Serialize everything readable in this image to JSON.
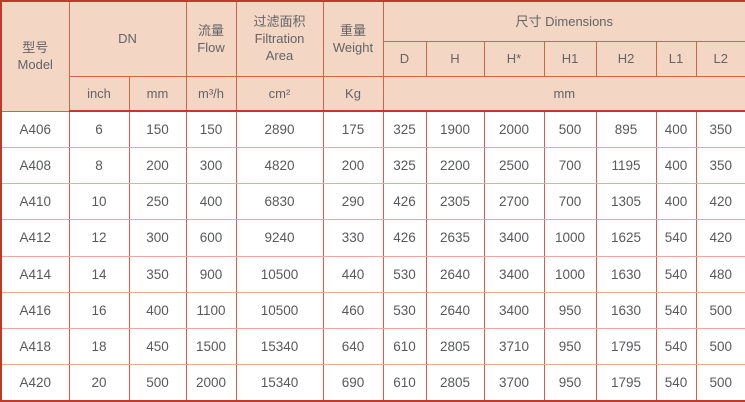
{
  "table": {
    "colors": {
      "header_bg": "#f4d6c5",
      "outer_border": "#c2392a",
      "header_grid": "#d2634b",
      "body_grid_vertical": "#dd5a49",
      "body_grid_horizontal": "#f0a89d",
      "text": "#58595b"
    },
    "header": {
      "model_zh": "型号",
      "model_en": "Model",
      "dn": "DN",
      "flow_zh": "流量",
      "flow_en": "Flow",
      "filtration_zh": "过滤面积",
      "filtration_en": "Filtration Area",
      "weight_zh": "重量",
      "weight_en": "Weight",
      "dimensions": "尺寸 Dimensions",
      "dim_cols": [
        "D",
        "H",
        "H*",
        "H1",
        "H2",
        "L1",
        "L2"
      ],
      "units": {
        "inch": "inch",
        "mm": "mm",
        "flow": "m³/h",
        "area": "cm²",
        "weight": "Kg",
        "dims": "mm"
      }
    },
    "rows": [
      {
        "model": "A406",
        "inch": "6",
        "mm": "150",
        "flow": "150",
        "area": "2890",
        "weight": "175",
        "dims": [
          "325",
          "1900",
          "2000",
          "500",
          "895",
          "400",
          "350"
        ]
      },
      {
        "model": "A408",
        "inch": "8",
        "mm": "200",
        "flow": "300",
        "area": "4820",
        "weight": "200",
        "dims": [
          "325",
          "2200",
          "2500",
          "700",
          "1195",
          "400",
          "350"
        ]
      },
      {
        "model": "A410",
        "inch": "10",
        "mm": "250",
        "flow": "400",
        "area": "6830",
        "weight": "290",
        "dims": [
          "426",
          "2305",
          "2700",
          "700",
          "1305",
          "400",
          "420"
        ]
      },
      {
        "model": "A412",
        "inch": "12",
        "mm": "300",
        "flow": "600",
        "area": "9240",
        "weight": "330",
        "dims": [
          "426",
          "2635",
          "3400",
          "1000",
          "1625",
          "540",
          "420"
        ]
      },
      {
        "model": "A414",
        "inch": "14",
        "mm": "350",
        "flow": "900",
        "area": "10500",
        "weight": "440",
        "dims": [
          "530",
          "2640",
          "3400",
          "1000",
          "1630",
          "540",
          "480"
        ]
      },
      {
        "model": "A416",
        "inch": "16",
        "mm": "400",
        "flow": "1100",
        "area": "10500",
        "weight": "460",
        "dims": [
          "530",
          "2640",
          "3400",
          "950",
          "1630",
          "540",
          "500"
        ]
      },
      {
        "model": "A418",
        "inch": "18",
        "mm": "450",
        "flow": "1500",
        "area": "15340",
        "weight": "640",
        "dims": [
          "610",
          "2805",
          "3710",
          "950",
          "1795",
          "540",
          "500"
        ]
      },
      {
        "model": "A420",
        "inch": "20",
        "mm": "500",
        "flow": "2000",
        "area": "15340",
        "weight": "690",
        "dims": [
          "610",
          "2805",
          "3700",
          "950",
          "1795",
          "540",
          "500"
        ]
      }
    ]
  }
}
